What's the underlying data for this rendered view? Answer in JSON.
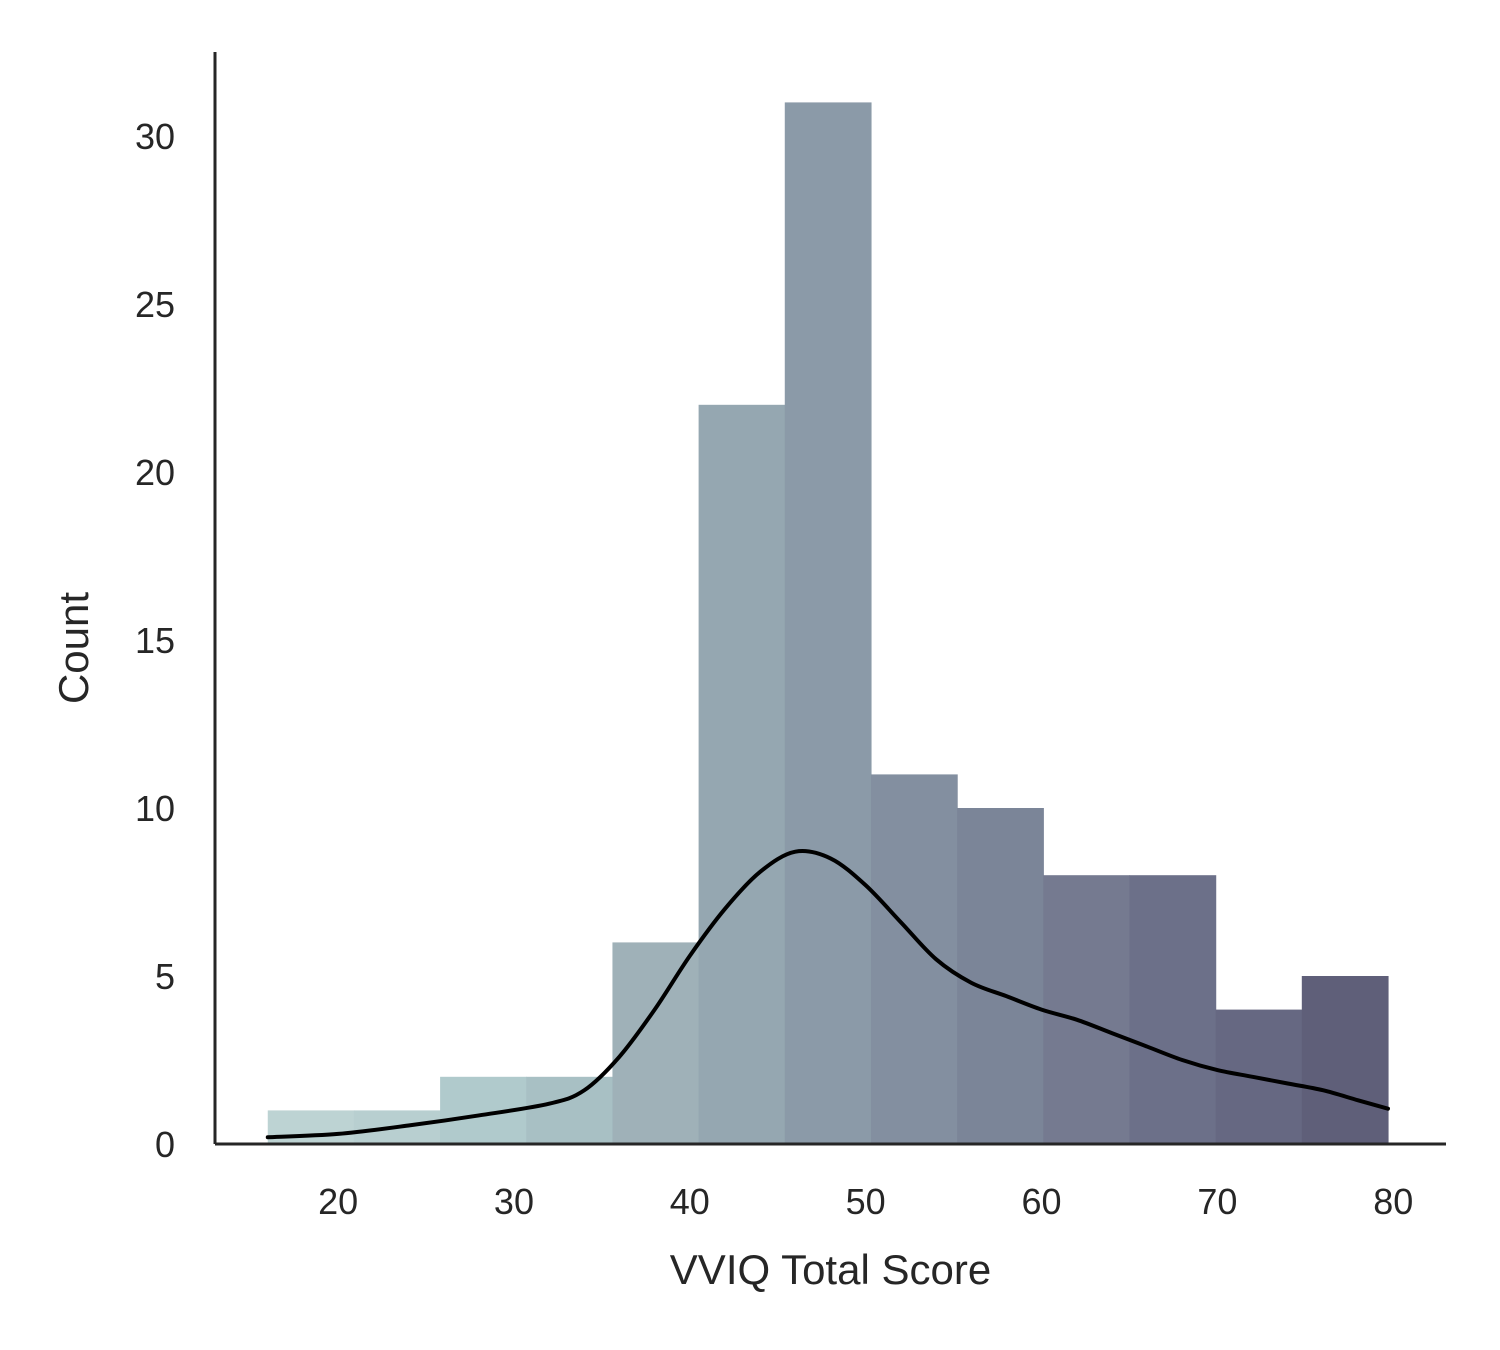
{
  "chart_data": {
    "type": "bar",
    "subtype": "histogram",
    "xlabel": "VVIQ Total Score",
    "ylabel": "Count",
    "xlim": [
      13,
      83
    ],
    "ylim": [
      0,
      32.5
    ],
    "xticks": [
      20,
      30,
      40,
      50,
      60,
      70,
      80
    ],
    "yticks": [
      0,
      5,
      10,
      15,
      20,
      25,
      30
    ],
    "grid": false,
    "bins": [
      {
        "start": 16,
        "end": 20.9,
        "count": 1,
        "color": "#bdd3d3"
      },
      {
        "start": 20.9,
        "end": 25.8,
        "count": 1,
        "color": "#b8cfd0"
      },
      {
        "start": 25.8,
        "end": 30.7,
        "count": 2,
        "color": "#b0cacc"
      },
      {
        "start": 30.7,
        "end": 35.6,
        "count": 2,
        "color": "#a8c0c4"
      },
      {
        "start": 35.6,
        "end": 40.5,
        "count": 6,
        "color": "#9fb1b8"
      },
      {
        "start": 40.5,
        "end": 45.4,
        "count": 22,
        "color": "#95a7b1"
      },
      {
        "start": 45.4,
        "end": 50.3,
        "count": 31,
        "color": "#8b9aa8"
      },
      {
        "start": 50.3,
        "end": 55.2,
        "count": 11,
        "color": "#838fa0"
      },
      {
        "start": 55.2,
        "end": 60.1,
        "count": 10,
        "color": "#7b8598"
      },
      {
        "start": 60.1,
        "end": 65.0,
        "count": 8,
        "color": "#757a90"
      },
      {
        "start": 65.0,
        "end": 69.9,
        "count": 8,
        "color": "#6c7089"
      },
      {
        "start": 69.9,
        "end": 74.8,
        "count": 4,
        "color": "#666882"
      },
      {
        "start": 74.8,
        "end": 79.7,
        "count": 5,
        "color": "#5f5f79"
      }
    ],
    "kde": {
      "color": "#000000",
      "x": [
        16,
        20,
        24,
        28,
        32,
        34,
        36,
        38,
        40,
        42,
        44,
        46,
        48,
        50,
        52,
        54,
        56,
        58,
        60,
        62,
        64,
        66,
        68,
        70,
        72,
        74,
        76,
        78,
        79.7
      ],
      "y": [
        0.2,
        0.3,
        0.55,
        0.85,
        1.2,
        1.6,
        2.6,
        4.0,
        5.6,
        7.0,
        8.1,
        8.7,
        8.5,
        7.7,
        6.6,
        5.5,
        4.8,
        4.4,
        4.0,
        3.7,
        3.3,
        2.9,
        2.5,
        2.2,
        2.0,
        1.8,
        1.6,
        1.3,
        1.05
      ]
    }
  }
}
